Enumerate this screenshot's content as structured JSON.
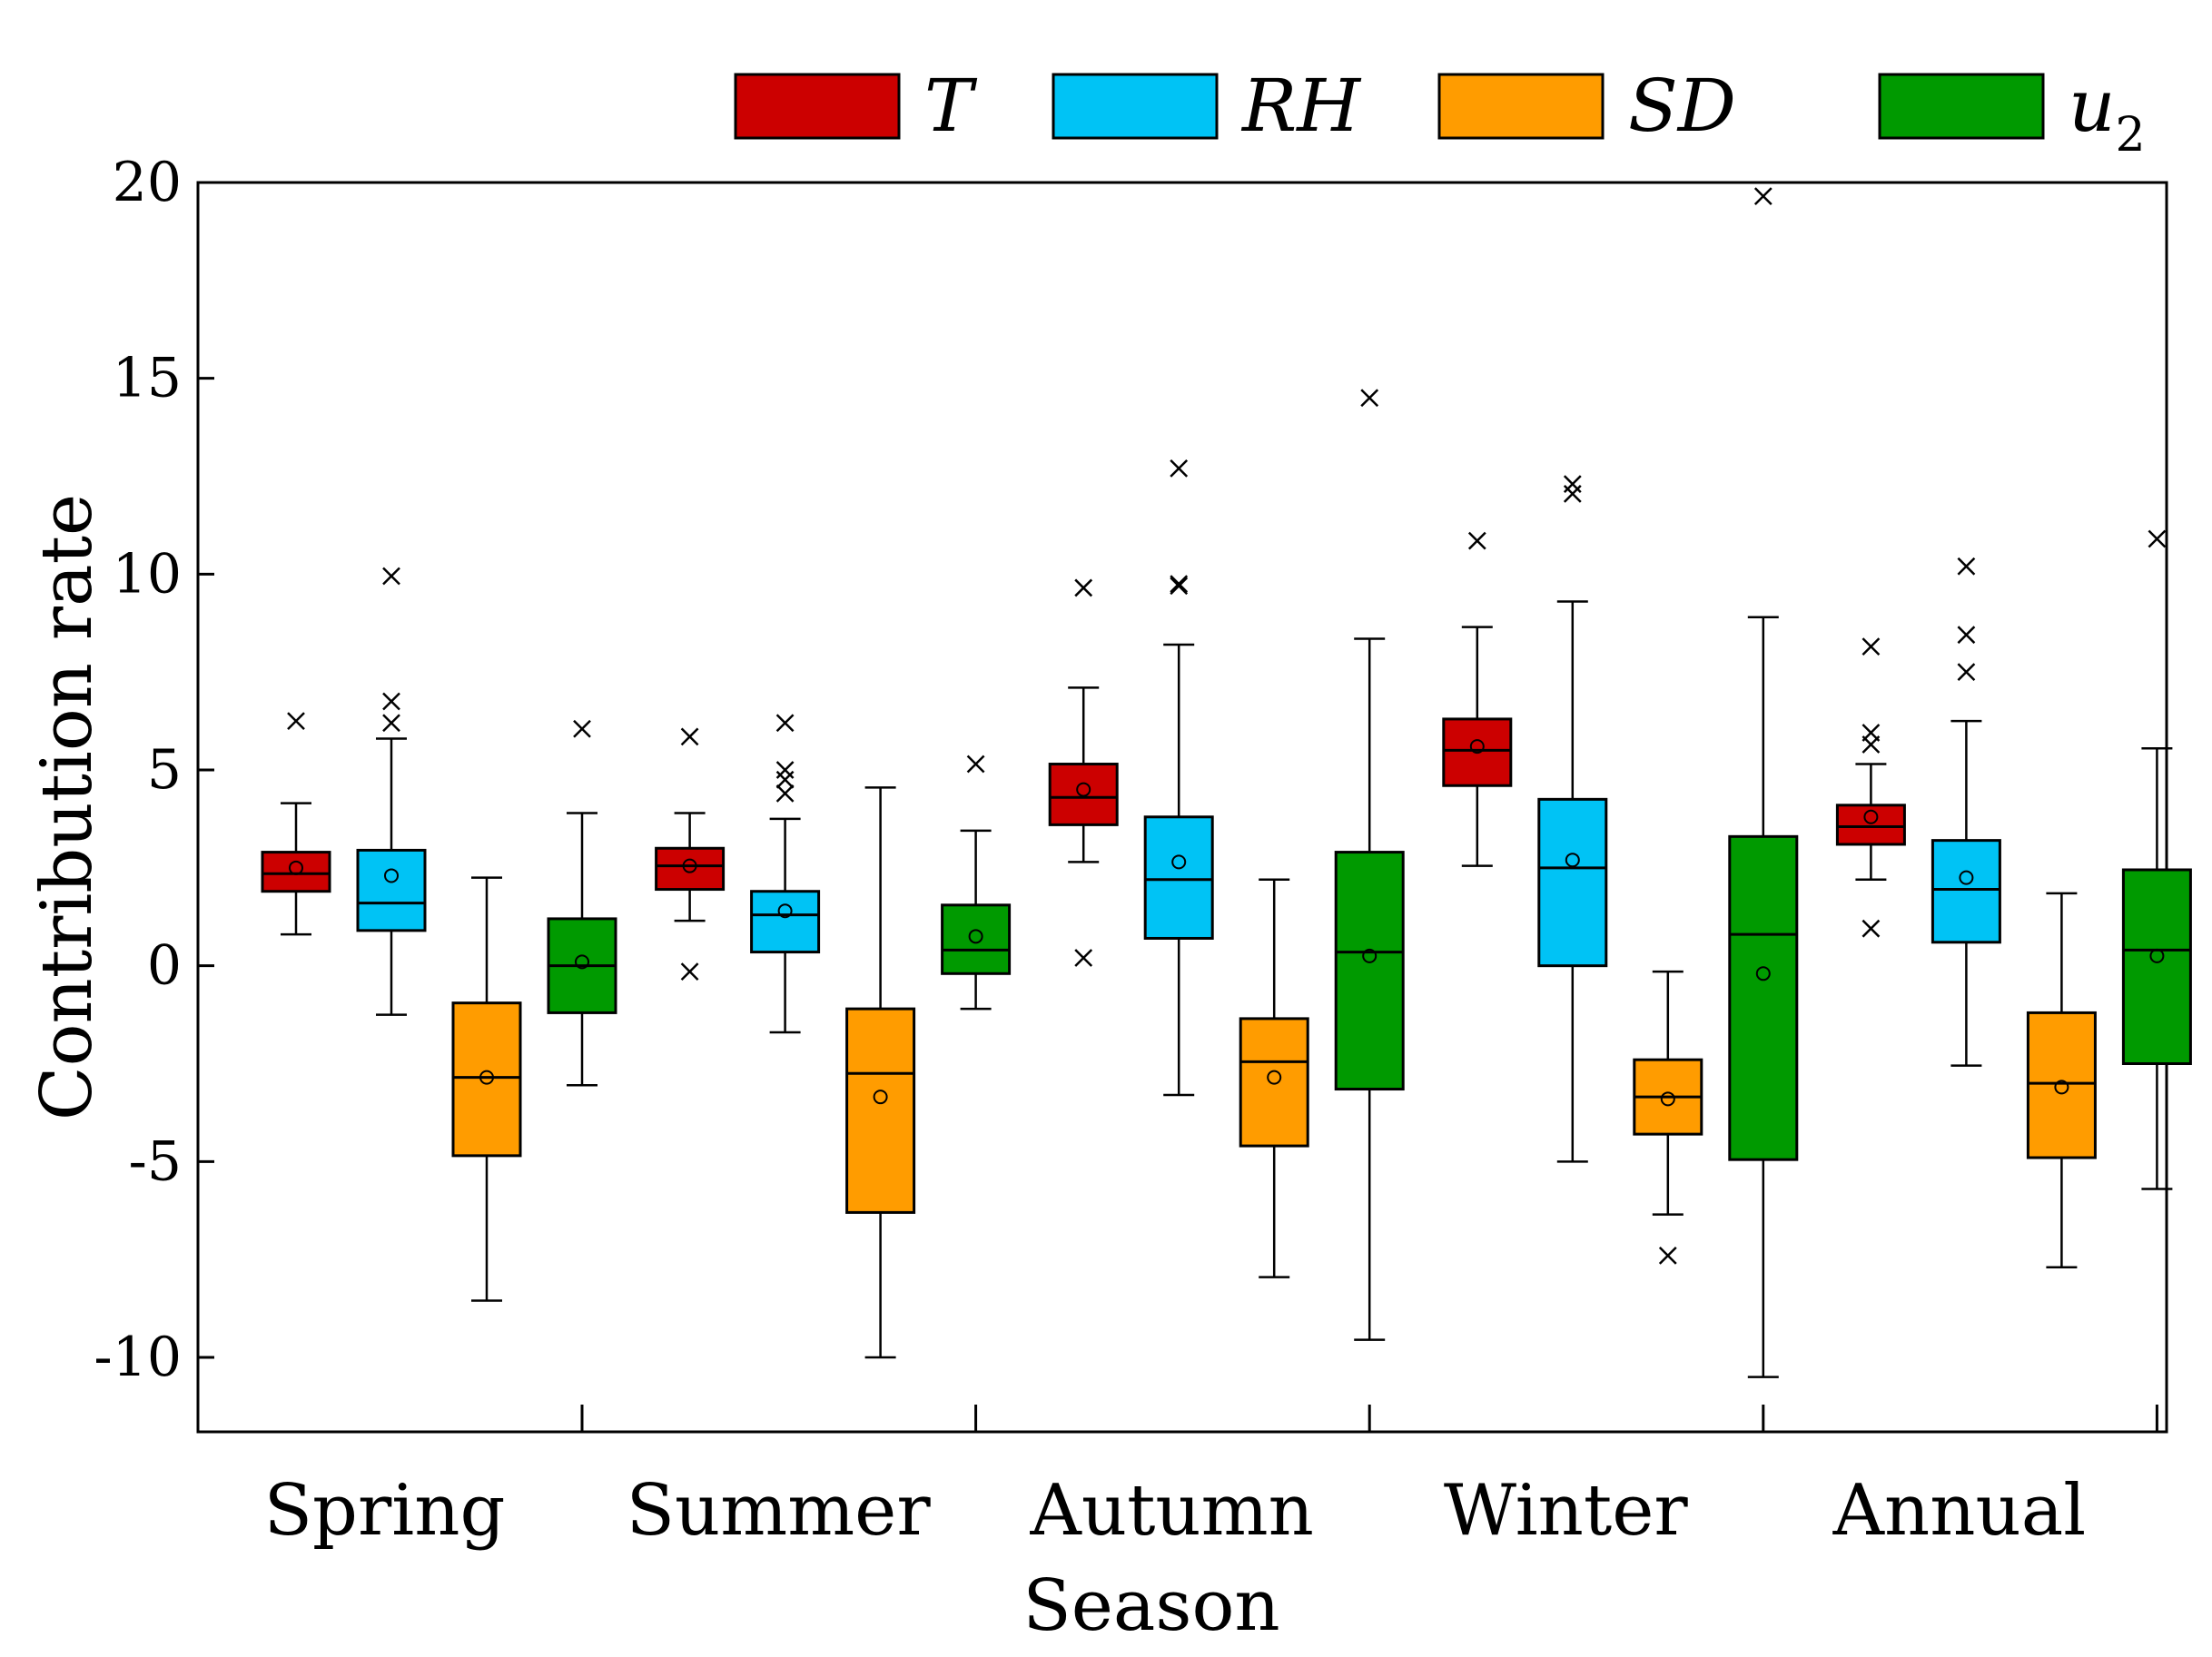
{
  "chart_data": {
    "type": "box",
    "title": "",
    "xlabel": "Season",
    "ylabel": "Contribution rate",
    "ylim": [
      -12,
      20
    ],
    "yticks": [
      20,
      15,
      10,
      5,
      0,
      -5,
      -10
    ],
    "yticklabels": [
      "20",
      "15",
      "10",
      "5",
      "0",
      "-5",
      "-10"
    ],
    "categories": [
      "Spring",
      "Summer",
      "Autumn",
      "Winter",
      "Annual"
    ],
    "legend_position": "top",
    "series": [
      {
        "name": "T",
        "sub": "",
        "color": "#cc0000",
        "boxes": [
          {
            "min": 0.8,
            "q1": 1.9,
            "median": 2.35,
            "q3": 2.9,
            "max": 4.15,
            "mean": 2.5,
            "outliers": [
              6.25
            ]
          },
          {
            "min": 1.15,
            "q1": 1.95,
            "median": 2.55,
            "q3": 3.0,
            "max": 3.9,
            "mean": 2.55,
            "outliers": [
              5.85,
              -0.15
            ]
          },
          {
            "min": 2.65,
            "q1": 3.6,
            "median": 4.3,
            "q3": 5.15,
            "max": 7.1,
            "mean": 4.5,
            "outliers": [
              9.65,
              0.2
            ]
          },
          {
            "min": 2.55,
            "q1": 4.6,
            "median": 5.5,
            "q3": 6.3,
            "max": 8.65,
            "mean": 5.6,
            "outliers": [
              10.85
            ]
          },
          {
            "min": 2.2,
            "q1": 3.1,
            "median": 3.55,
            "q3": 4.1,
            "max": 5.15,
            "mean": 3.8,
            "outliers": [
              8.15,
              5.95,
              5.65,
              0.95
            ]
          }
        ]
      },
      {
        "name": "RH",
        "sub": "",
        "color": "#00c3f5",
        "boxes": [
          {
            "min": -1.25,
            "q1": 0.9,
            "median": 1.6,
            "q3": 2.95,
            "max": 5.8,
            "mean": 2.3,
            "outliers": [
              9.95,
              6.75,
              6.2
            ]
          },
          {
            "min": -1.7,
            "q1": 0.35,
            "median": 1.3,
            "q3": 1.9,
            "max": 3.75,
            "mean": 1.4,
            "outliers": [
              6.2,
              5.0,
              4.75,
              4.4
            ]
          },
          {
            "min": -3.3,
            "q1": 0.7,
            "median": 2.2,
            "q3": 3.8,
            "max": 8.2,
            "mean": 2.65,
            "outliers": [
              12.7,
              9.75,
              9.7
            ]
          },
          {
            "min": -5.0,
            "q1": 0.0,
            "median": 2.5,
            "q3": 4.25,
            "max": 9.3,
            "mean": 2.7,
            "outliers": [
              12.3,
              12.05
            ]
          },
          {
            "min": -2.55,
            "q1": 0.6,
            "median": 1.95,
            "q3": 3.2,
            "max": 6.25,
            "mean": 2.25,
            "outliers": [
              10.2,
              8.45,
              7.5
            ]
          }
        ]
      },
      {
        "name": "SD",
        "sub": "",
        "color": "#ff9c00",
        "boxes": [
          {
            "min": -8.55,
            "q1": -4.85,
            "median": -2.85,
            "q3": -0.95,
            "max": 2.25,
            "mean": -2.85,
            "outliers": []
          },
          {
            "min": -10.0,
            "q1": -6.3,
            "median": -2.75,
            "q3": -1.1,
            "max": 4.55,
            "mean": -3.35,
            "outliers": []
          },
          {
            "min": -7.95,
            "q1": -4.6,
            "median": -2.45,
            "q3": -1.35,
            "max": 2.2,
            "mean": -2.85,
            "outliers": []
          },
          {
            "min": -6.35,
            "q1": -4.3,
            "median": -3.35,
            "q3": -2.4,
            "max": -0.15,
            "mean": -3.4,
            "outliers": [
              -7.4
            ]
          },
          {
            "min": -7.7,
            "q1": -4.9,
            "median": -3.0,
            "q3": -1.2,
            "max": 1.85,
            "mean": -3.1,
            "outliers": []
          }
        ]
      },
      {
        "name": "u",
        "sub": "2",
        "color": "#009a00",
        "boxes": [
          {
            "min": -3.05,
            "q1": -1.2,
            "median": 0.0,
            "q3": 1.2,
            "max": 3.9,
            "mean": 0.1,
            "outliers": [
              6.05
            ]
          },
          {
            "min": -1.1,
            "q1": -0.2,
            "median": 0.4,
            "q3": 1.55,
            "max": 3.45,
            "mean": 0.75,
            "outliers": [
              5.15
            ]
          },
          {
            "min": -9.55,
            "q1": -3.15,
            "median": 0.35,
            "q3": 2.9,
            "max": 8.35,
            "mean": 0.25,
            "outliers": [
              14.5
            ]
          },
          {
            "min": -10.5,
            "q1": -4.95,
            "median": 0.8,
            "q3": 3.3,
            "max": 8.9,
            "mean": -0.2,
            "outliers": [
              19.65
            ]
          },
          {
            "min": -5.7,
            "q1": -2.5,
            "median": 0.4,
            "q3": 2.45,
            "max": 5.55,
            "mean": 0.25,
            "outliers": [
              10.9
            ]
          }
        ]
      }
    ]
  }
}
